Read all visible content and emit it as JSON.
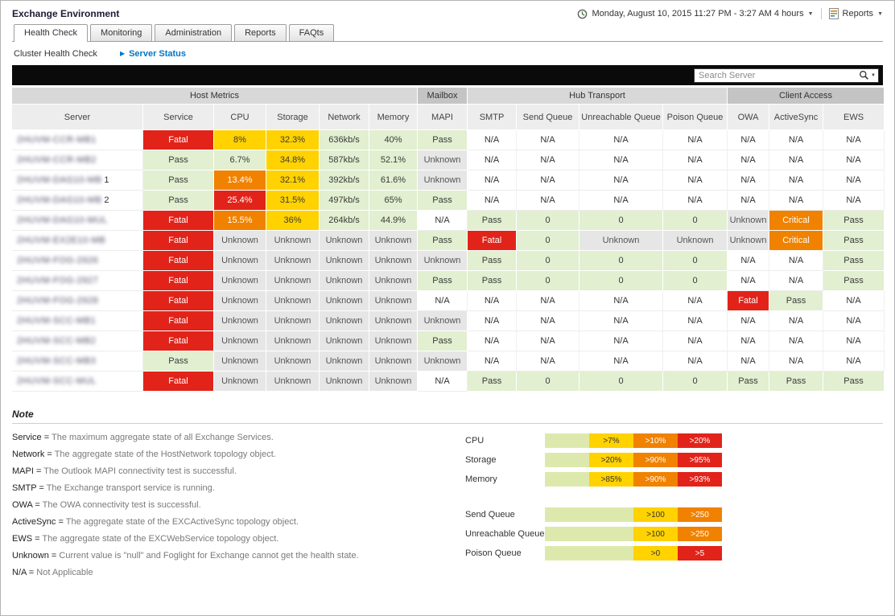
{
  "colors": {
    "fatal": "#e2231a",
    "critical": "#f08200",
    "warning": "#ffd200",
    "pass": "#e2efd0",
    "unknown": "#e6e6e6",
    "legend_green": "#dde9ac",
    "link_blue": "#0077c8"
  },
  "header": {
    "title": "Exchange Environment",
    "time_range": "Monday, August 10, 2015 11:27 PM - 3:27 AM 4 hours",
    "reports_label": "Reports"
  },
  "tabs": [
    {
      "label": "Health Check",
      "active": true
    },
    {
      "label": "Monitoring",
      "active": false
    },
    {
      "label": "Administration",
      "active": false
    },
    {
      "label": "Reports",
      "active": false
    },
    {
      "label": "FAQts",
      "active": false
    }
  ],
  "breadcrumb": {
    "parent": "Cluster Health Check",
    "current": "Server Status"
  },
  "search": {
    "placeholder": "Search Server"
  },
  "table": {
    "groups": [
      {
        "label": "Host Metrics",
        "span": 6,
        "shade": "light"
      },
      {
        "label": "Mailbox",
        "span": 1,
        "shade": "dark"
      },
      {
        "label": "Hub Transport",
        "span": 4,
        "shade": "light"
      },
      {
        "label": "Client Access",
        "span": 3,
        "shade": "dark"
      }
    ],
    "columns": [
      "Server",
      "Service",
      "CPU",
      "Storage",
      "Network",
      "Memory",
      "MAPI",
      "SMTP",
      "Send Queue",
      "Unreachable Queue",
      "Poison Queue",
      "OWA",
      "ActiveSync",
      "EWS"
    ],
    "rows": [
      {
        "server": "2HUVM-CCR-MB1",
        "visible": "",
        "cells": [
          {
            "v": "Fatal",
            "s": "fatal"
          },
          {
            "v": "8%",
            "s": "warn"
          },
          {
            "v": "32.3%",
            "s": "warn"
          },
          {
            "v": "636kb/s",
            "s": "ok"
          },
          {
            "v": "40%",
            "s": "ok"
          },
          {
            "v": "Pass",
            "s": "ok"
          },
          {
            "v": "N/A",
            "s": "na"
          },
          {
            "v": "N/A",
            "s": "na"
          },
          {
            "v": "N/A",
            "s": "na"
          },
          {
            "v": "N/A",
            "s": "na"
          },
          {
            "v": "N/A",
            "s": "na"
          },
          {
            "v": "N/A",
            "s": "na"
          },
          {
            "v": "N/A",
            "s": "na"
          }
        ]
      },
      {
        "server": "2HUVM-CCR-MB2",
        "visible": "",
        "cells": [
          {
            "v": "Pass",
            "s": "ok"
          },
          {
            "v": "6.7%",
            "s": "ok"
          },
          {
            "v": "34.8%",
            "s": "warn"
          },
          {
            "v": "587kb/s",
            "s": "ok"
          },
          {
            "v": "52.1%",
            "s": "ok"
          },
          {
            "v": "Unknown",
            "s": "unk"
          },
          {
            "v": "N/A",
            "s": "na"
          },
          {
            "v": "N/A",
            "s": "na"
          },
          {
            "v": "N/A",
            "s": "na"
          },
          {
            "v": "N/A",
            "s": "na"
          },
          {
            "v": "N/A",
            "s": "na"
          },
          {
            "v": "N/A",
            "s": "na"
          },
          {
            "v": "N/A",
            "s": "na"
          }
        ]
      },
      {
        "server": "2HUVM-DAG10-MB",
        "visible": "1",
        "cells": [
          {
            "v": "Pass",
            "s": "ok"
          },
          {
            "v": "13.4%",
            "s": "crit"
          },
          {
            "v": "32.1%",
            "s": "warn"
          },
          {
            "v": "392kb/s",
            "s": "ok"
          },
          {
            "v": "61.6%",
            "s": "ok"
          },
          {
            "v": "Unknown",
            "s": "unk"
          },
          {
            "v": "N/A",
            "s": "na"
          },
          {
            "v": "N/A",
            "s": "na"
          },
          {
            "v": "N/A",
            "s": "na"
          },
          {
            "v": "N/A",
            "s": "na"
          },
          {
            "v": "N/A",
            "s": "na"
          },
          {
            "v": "N/A",
            "s": "na"
          },
          {
            "v": "N/A",
            "s": "na"
          }
        ]
      },
      {
        "server": "2HUVM-DAG10-MB",
        "visible": "2",
        "cells": [
          {
            "v": "Pass",
            "s": "ok"
          },
          {
            "v": "25.4%",
            "s": "fatal"
          },
          {
            "v": "31.5%",
            "s": "warn"
          },
          {
            "v": "497kb/s",
            "s": "ok"
          },
          {
            "v": "65%",
            "s": "ok"
          },
          {
            "v": "Pass",
            "s": "ok"
          },
          {
            "v": "N/A",
            "s": "na"
          },
          {
            "v": "N/A",
            "s": "na"
          },
          {
            "v": "N/A",
            "s": "na"
          },
          {
            "v": "N/A",
            "s": "na"
          },
          {
            "v": "N/A",
            "s": "na"
          },
          {
            "v": "N/A",
            "s": "na"
          },
          {
            "v": "N/A",
            "s": "na"
          }
        ]
      },
      {
        "server": "2HUVM-DAG10-MUL",
        "visible": "",
        "cells": [
          {
            "v": "Fatal",
            "s": "fatal"
          },
          {
            "v": "15.5%",
            "s": "crit"
          },
          {
            "v": "36%",
            "s": "warn"
          },
          {
            "v": "264kb/s",
            "s": "ok"
          },
          {
            "v": "44.9%",
            "s": "ok"
          },
          {
            "v": "N/A",
            "s": "na"
          },
          {
            "v": "Pass",
            "s": "ok"
          },
          {
            "v": "0",
            "s": "ok"
          },
          {
            "v": "0",
            "s": "ok"
          },
          {
            "v": "0",
            "s": "ok"
          },
          {
            "v": "Unknown",
            "s": "unk"
          },
          {
            "v": "Critical",
            "s": "crit"
          },
          {
            "v": "Pass",
            "s": "ok"
          }
        ]
      },
      {
        "server": "2HUVM-EX2E10-MB",
        "visible": "",
        "cells": [
          {
            "v": "Fatal",
            "s": "fatal"
          },
          {
            "v": "Unknown",
            "s": "unk"
          },
          {
            "v": "Unknown",
            "s": "unk"
          },
          {
            "v": "Unknown",
            "s": "unk"
          },
          {
            "v": "Unknown",
            "s": "unk"
          },
          {
            "v": "Pass",
            "s": "ok"
          },
          {
            "v": "Fatal",
            "s": "fatal"
          },
          {
            "v": "0",
            "s": "ok"
          },
          {
            "v": "Unknown",
            "s": "unk"
          },
          {
            "v": "Unknown",
            "s": "unk"
          },
          {
            "v": "Unknown",
            "s": "unk"
          },
          {
            "v": "Critical",
            "s": "crit"
          },
          {
            "v": "Pass",
            "s": "ok"
          }
        ]
      },
      {
        "server": "2HUVM-FOG-2926",
        "visible": "",
        "cells": [
          {
            "v": "Fatal",
            "s": "fatal"
          },
          {
            "v": "Unknown",
            "s": "unk"
          },
          {
            "v": "Unknown",
            "s": "unk"
          },
          {
            "v": "Unknown",
            "s": "unk"
          },
          {
            "v": "Unknown",
            "s": "unk"
          },
          {
            "v": "Unknown",
            "s": "unk"
          },
          {
            "v": "Pass",
            "s": "ok"
          },
          {
            "v": "0",
            "s": "ok"
          },
          {
            "v": "0",
            "s": "ok"
          },
          {
            "v": "0",
            "s": "ok"
          },
          {
            "v": "N/A",
            "s": "na"
          },
          {
            "v": "N/A",
            "s": "na"
          },
          {
            "v": "Pass",
            "s": "ok"
          }
        ]
      },
      {
        "server": "2HUVM-FOG-2927",
        "visible": "",
        "cells": [
          {
            "v": "Fatal",
            "s": "fatal"
          },
          {
            "v": "Unknown",
            "s": "unk"
          },
          {
            "v": "Unknown",
            "s": "unk"
          },
          {
            "v": "Unknown",
            "s": "unk"
          },
          {
            "v": "Unknown",
            "s": "unk"
          },
          {
            "v": "Pass",
            "s": "ok"
          },
          {
            "v": "Pass",
            "s": "ok"
          },
          {
            "v": "0",
            "s": "ok"
          },
          {
            "v": "0",
            "s": "ok"
          },
          {
            "v": "0",
            "s": "ok"
          },
          {
            "v": "N/A",
            "s": "na"
          },
          {
            "v": "N/A",
            "s": "na"
          },
          {
            "v": "Pass",
            "s": "ok"
          }
        ]
      },
      {
        "server": "2HUVM-FOG-2928",
        "visible": "",
        "cells": [
          {
            "v": "Fatal",
            "s": "fatal"
          },
          {
            "v": "Unknown",
            "s": "unk"
          },
          {
            "v": "Unknown",
            "s": "unk"
          },
          {
            "v": "Unknown",
            "s": "unk"
          },
          {
            "v": "Unknown",
            "s": "unk"
          },
          {
            "v": "N/A",
            "s": "na"
          },
          {
            "v": "N/A",
            "s": "na"
          },
          {
            "v": "N/A",
            "s": "na"
          },
          {
            "v": "N/A",
            "s": "na"
          },
          {
            "v": "N/A",
            "s": "na"
          },
          {
            "v": "Fatal",
            "s": "fatal"
          },
          {
            "v": "Pass",
            "s": "ok"
          },
          {
            "v": "N/A",
            "s": "na"
          }
        ]
      },
      {
        "server": "2HUVM-SCC-MB1",
        "visible": "",
        "cells": [
          {
            "v": "Fatal",
            "s": "fatal"
          },
          {
            "v": "Unknown",
            "s": "unk"
          },
          {
            "v": "Unknown",
            "s": "unk"
          },
          {
            "v": "Unknown",
            "s": "unk"
          },
          {
            "v": "Unknown",
            "s": "unk"
          },
          {
            "v": "Unknown",
            "s": "unk"
          },
          {
            "v": "N/A",
            "s": "na"
          },
          {
            "v": "N/A",
            "s": "na"
          },
          {
            "v": "N/A",
            "s": "na"
          },
          {
            "v": "N/A",
            "s": "na"
          },
          {
            "v": "N/A",
            "s": "na"
          },
          {
            "v": "N/A",
            "s": "na"
          },
          {
            "v": "N/A",
            "s": "na"
          }
        ]
      },
      {
        "server": "2HUVM-SCC-MB2",
        "visible": "",
        "cells": [
          {
            "v": "Fatal",
            "s": "fatal"
          },
          {
            "v": "Unknown",
            "s": "unk"
          },
          {
            "v": "Unknown",
            "s": "unk"
          },
          {
            "v": "Unknown",
            "s": "unk"
          },
          {
            "v": "Unknown",
            "s": "unk"
          },
          {
            "v": "Pass",
            "s": "ok"
          },
          {
            "v": "N/A",
            "s": "na"
          },
          {
            "v": "N/A",
            "s": "na"
          },
          {
            "v": "N/A",
            "s": "na"
          },
          {
            "v": "N/A",
            "s": "na"
          },
          {
            "v": "N/A",
            "s": "na"
          },
          {
            "v": "N/A",
            "s": "na"
          },
          {
            "v": "N/A",
            "s": "na"
          }
        ]
      },
      {
        "server": "2HUVM-SCC-MB3",
        "visible": "",
        "cells": [
          {
            "v": "Pass",
            "s": "ok"
          },
          {
            "v": "Unknown",
            "s": "unk"
          },
          {
            "v": "Unknown",
            "s": "unk"
          },
          {
            "v": "Unknown",
            "s": "unk"
          },
          {
            "v": "Unknown",
            "s": "unk"
          },
          {
            "v": "Unknown",
            "s": "unk"
          },
          {
            "v": "N/A",
            "s": "na"
          },
          {
            "v": "N/A",
            "s": "na"
          },
          {
            "v": "N/A",
            "s": "na"
          },
          {
            "v": "N/A",
            "s": "na"
          },
          {
            "v": "N/A",
            "s": "na"
          },
          {
            "v": "N/A",
            "s": "na"
          },
          {
            "v": "N/A",
            "s": "na"
          }
        ]
      },
      {
        "server": "2HUVM-SCC-MUL",
        "visible": "",
        "cells": [
          {
            "v": "Fatal",
            "s": "fatal"
          },
          {
            "v": "Unknown",
            "s": "unk"
          },
          {
            "v": "Unknown",
            "s": "unk"
          },
          {
            "v": "Unknown",
            "s": "unk"
          },
          {
            "v": "Unknown",
            "s": "unk"
          },
          {
            "v": "N/A",
            "s": "na"
          },
          {
            "v": "Pass",
            "s": "ok"
          },
          {
            "v": "0",
            "s": "ok"
          },
          {
            "v": "0",
            "s": "ok"
          },
          {
            "v": "0",
            "s": "ok"
          },
          {
            "v": "Pass",
            "s": "ok"
          },
          {
            "v": "Pass",
            "s": "ok"
          },
          {
            "v": "Pass",
            "s": "ok"
          }
        ]
      }
    ]
  },
  "note": {
    "title": "Note",
    "definitions": [
      {
        "term": "Service",
        "desc": "The maximum aggregate state of all Exchange Services."
      },
      {
        "term": "Network",
        "desc": "The aggregate state of the HostNetwork topology object."
      },
      {
        "term": "MAPI",
        "desc": "The Outlook MAPI connectivity test is successful."
      },
      {
        "term": "SMTP",
        "desc": "The Exchange transport service is running."
      },
      {
        "term": "OWA",
        "desc": "The OWA connectivity test is successful."
      },
      {
        "term": "ActiveSync",
        "desc": "The aggregate state of the EXCActiveSync topology object."
      },
      {
        "term": "EWS",
        "desc": "The aggregate state of the EXCWebService topology object."
      },
      {
        "term": "Unknown",
        "desc": "Current value is \"null\" and Foglight for Exchange cannot get the health state."
      },
      {
        "term": "N/A",
        "desc": "Not Applicable"
      }
    ]
  },
  "legend": {
    "metrics": [
      {
        "label": "CPU",
        "segments": [
          {
            "label": "",
            "color": "green",
            "flex": 1
          },
          {
            "label": ">7%",
            "color": "yellow",
            "flex": 1
          },
          {
            "label": ">10%",
            "color": "orange",
            "flex": 1
          },
          {
            "label": ">20%",
            "color": "red",
            "flex": 1
          }
        ]
      },
      {
        "label": "Storage",
        "segments": [
          {
            "label": "",
            "color": "green",
            "flex": 1
          },
          {
            "label": ">20%",
            "color": "yellow",
            "flex": 1
          },
          {
            "label": ">90%",
            "color": "orange",
            "flex": 1
          },
          {
            "label": ">95%",
            "color": "red",
            "flex": 1
          }
        ]
      },
      {
        "label": "Memory",
        "segments": [
          {
            "label": "",
            "color": "green",
            "flex": 1
          },
          {
            "label": ">85%",
            "color": "yellow",
            "flex": 1
          },
          {
            "label": ">90%",
            "color": "orange",
            "flex": 1
          },
          {
            "label": ">93%",
            "color": "red",
            "flex": 1
          }
        ]
      }
    ],
    "queues": [
      {
        "label": "Send Queue",
        "segments": [
          {
            "label": "",
            "color": "green",
            "flex": 2
          },
          {
            "label": ">100",
            "color": "yellow",
            "flex": 1
          },
          {
            "label": ">250",
            "color": "orange",
            "flex": 1
          }
        ]
      },
      {
        "label": "Unreachable Queue",
        "segments": [
          {
            "label": "",
            "color": "green",
            "flex": 2
          },
          {
            "label": ">100",
            "color": "yellow",
            "flex": 1
          },
          {
            "label": ">250",
            "color": "orange",
            "flex": 1
          }
        ]
      },
      {
        "label": "Poison Queue",
        "segments": [
          {
            "label": "",
            "color": "green",
            "flex": 2
          },
          {
            "label": ">0",
            "color": "yellow",
            "flex": 1
          },
          {
            "label": ">5",
            "color": "red",
            "flex": 1
          }
        ]
      }
    ]
  }
}
